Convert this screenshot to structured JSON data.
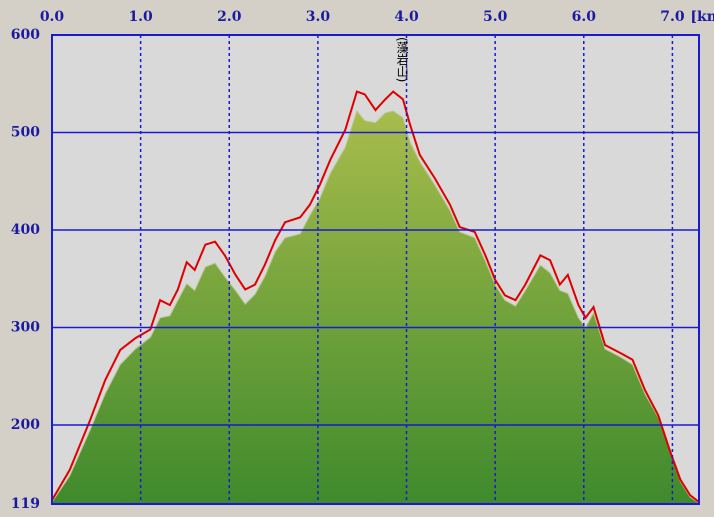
{
  "chart_data": {
    "type": "area",
    "x_label": "[km]",
    "annotation": "(藻岩山)",
    "annotation_x": 3.95,
    "x": [
      0.0,
      0.2,
      0.43,
      0.6,
      0.77,
      0.94,
      1.11,
      1.22,
      1.33,
      1.42,
      1.52,
      1.61,
      1.73,
      1.84,
      1.95,
      2.07,
      2.18,
      2.29,
      2.4,
      2.52,
      2.63,
      2.8,
      2.91,
      3.02,
      3.14,
      3.31,
      3.44,
      3.53,
      3.65,
      3.76,
      3.85,
      3.96,
      4.04,
      4.15,
      4.32,
      4.49,
      4.6,
      4.77,
      4.89,
      5.0,
      5.11,
      5.23,
      5.34,
      5.51,
      5.62,
      5.73,
      5.82,
      5.94,
      6.02,
      6.11,
      6.24,
      6.41,
      6.55,
      6.69,
      6.84,
      6.97,
      7.09,
      7.2,
      7.3
    ],
    "series": [
      {
        "name": "terrain",
        "color": "#6c9a34",
        "fill": true,
        "values": [
          121,
          148,
          195,
          232,
          262,
          278,
          290,
          310,
          312,
          328,
          345,
          338,
          362,
          366,
          352,
          338,
          324,
          334,
          352,
          378,
          392,
          396,
          415,
          432,
          458,
          485,
          522,
          512,
          510,
          520,
          522,
          515,
          490,
          470,
          446,
          420,
          398,
          392,
          368,
          344,
          328,
          322,
          338,
          364,
          356,
          338,
          335,
          310,
          300,
          315,
          278,
          270,
          262,
          232,
          208,
          176,
          142,
          126,
          120
        ]
      },
      {
        "name": "route",
        "color": "#e00000",
        "fill": false,
        "values": [
          123,
          154,
          205,
          246,
          277,
          289,
          298,
          328,
          323,
          339,
          367,
          359,
          385,
          388,
          374,
          354,
          339,
          344,
          364,
          390,
          408,
          413,
          426,
          446,
          472,
          503,
          542,
          539,
          523,
          534,
          542,
          534,
          508,
          477,
          453,
          426,
          403,
          398,
          374,
          349,
          333,
          328,
          344,
          374,
          369,
          344,
          354,
          323,
          310,
          321,
          282,
          274,
          267,
          236,
          210,
          174,
          144,
          128,
          121
        ]
      }
    ],
    "xlim": [
      0,
      7.3
    ],
    "ylim": [
      119,
      600
    ],
    "xticks": [
      {
        "value": 0,
        "label": "0.0"
      },
      {
        "value": 1,
        "label": "1.0"
      },
      {
        "value": 2,
        "label": "2.0"
      },
      {
        "value": 3,
        "label": "3.0"
      },
      {
        "value": 4,
        "label": "4.0"
      },
      {
        "value": 5,
        "label": "5.0"
      },
      {
        "value": 6,
        "label": "6.0"
      },
      {
        "value": 7,
        "label": "7.0"
      }
    ],
    "yticks": [
      119,
      200,
      300,
      400,
      500,
      600
    ],
    "grid": true,
    "grid_color": "#1a1ad0",
    "background": "#d9d9d9"
  }
}
